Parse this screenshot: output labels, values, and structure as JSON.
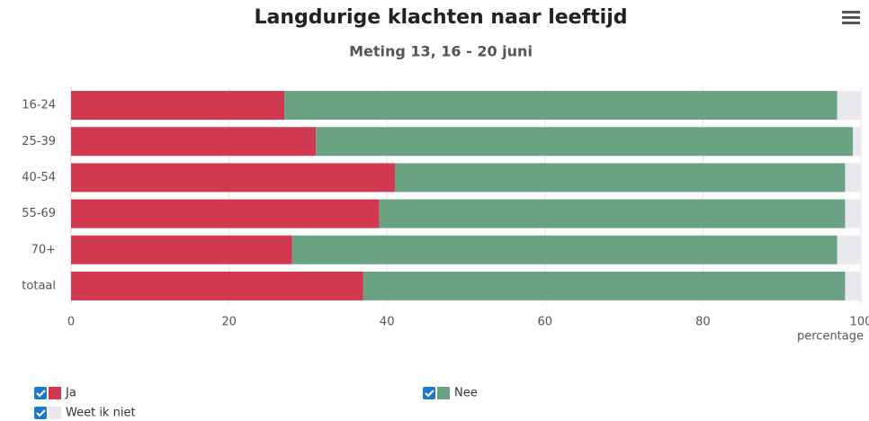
{
  "chart_data": {
    "type": "stacked-bar-horizontal",
    "title": "Langdurige klachten naar leeftijd",
    "subtitle": "Meting 13, 16 - 20 juni",
    "x_label": "percentage",
    "categories": [
      "16-24",
      "25-39",
      "40-54",
      "55-69",
      "70+",
      "totaal"
    ],
    "series": [
      {
        "name": "Ja",
        "color": "#d0394f",
        "values": [
          27,
          31,
          41,
          39,
          28,
          37
        ]
      },
      {
        "name": "Nee",
        "color": "#6aa384",
        "values": [
          70,
          68,
          57,
          59,
          69,
          61
        ]
      },
      {
        "name": "Weet ik niet",
        "color": "#e8e8ee",
        "values": [
          3,
          1,
          2,
          2,
          3,
          2
        ]
      }
    ],
    "xlim": [
      0,
      100
    ],
    "xticks": [
      0,
      20,
      40,
      60,
      80,
      100
    ],
    "grid": true
  }
}
